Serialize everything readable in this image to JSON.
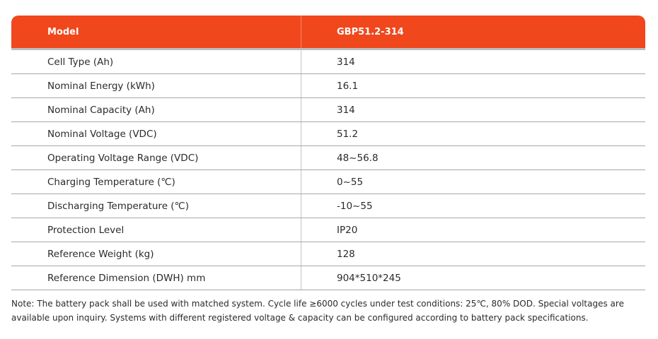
{
  "table": {
    "header": {
      "label": "Model",
      "value": "GBP51.2-314"
    },
    "rows": [
      {
        "label": "Cell Type (Ah)",
        "value": "314"
      },
      {
        "label": "Nominal Energy (kWh)",
        "value": "16.1"
      },
      {
        "label": "Nominal Capacity (Ah)",
        "value": "314"
      },
      {
        "label": "Nominal Voltage (VDC)",
        "value": "51.2"
      },
      {
        "label": "Operating Voltage Range (VDC)",
        "value": "48~56.8"
      },
      {
        "label": "Charging Temperature (℃)",
        "value": "0~55"
      },
      {
        "label": "Discharging Temperature (℃)",
        "value": "-10~55"
      },
      {
        "label": "Protection Level",
        "value": "IP20"
      },
      {
        "label": "Reference Weight (kg)",
        "value": "128"
      },
      {
        "label": "Reference Dimension (DWH) mm",
        "value": "904*510*245"
      }
    ]
  },
  "note": "Note: The battery pack shall be used with matched system. Cycle life ≥6000 cycles under test conditions: 25℃, 80% DOD. Special voltages are available upon inquiry. Systems with different registered voltage & capacity can be configured according to battery pack specifications.",
  "colors": {
    "header_bg": "#f0471d",
    "header_text": "#ffffff",
    "row_border": "#a7a7a7"
  }
}
